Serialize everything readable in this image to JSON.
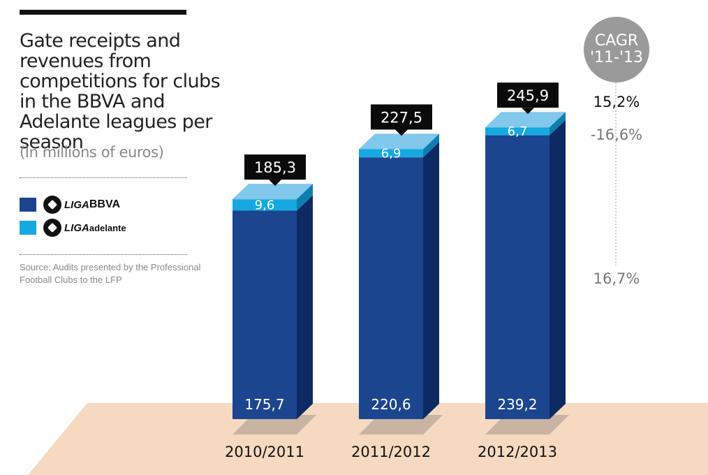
{
  "title": "Gate receipts and revenues from competitions for clubs in the BBVA and Adelante leagues per season",
  "subtitle": "(In millions of euros)",
  "legend": {
    "bbva": {
      "brand": "LIGA",
      "name": "BBVA",
      "color": "#1c4590"
    },
    "adelante": {
      "brand": "LIGA",
      "name": "adelante",
      "color": "#16a9e1"
    }
  },
  "source": "Source: Audits presented by the Professional Football Clubs to the LFP",
  "cagr": {
    "label_line1": "CAGR",
    "label_line2": "'11-'13",
    "total": "15,2%",
    "adelante": "-16,6%",
    "bbva": "16,7%"
  },
  "chart_data": {
    "type": "bar",
    "stacked": true,
    "categories": [
      "2010/2011",
      "2011/2012",
      "2012/2013"
    ],
    "series": [
      {
        "name": "LIGA BBVA",
        "values": [
          175.7,
          220.6,
          239.2
        ],
        "labels": [
          "175,7",
          "220,6",
          "239,2"
        ]
      },
      {
        "name": "LIGA adelante",
        "values": [
          9.6,
          6.9,
          6.7
        ],
        "labels": [
          "9,6",
          "6,9",
          "6,7"
        ]
      }
    ],
    "totals": [
      185.3,
      227.5,
      245.9
    ],
    "total_labels": [
      "185,3",
      "227,5",
      "245,9"
    ]
  }
}
